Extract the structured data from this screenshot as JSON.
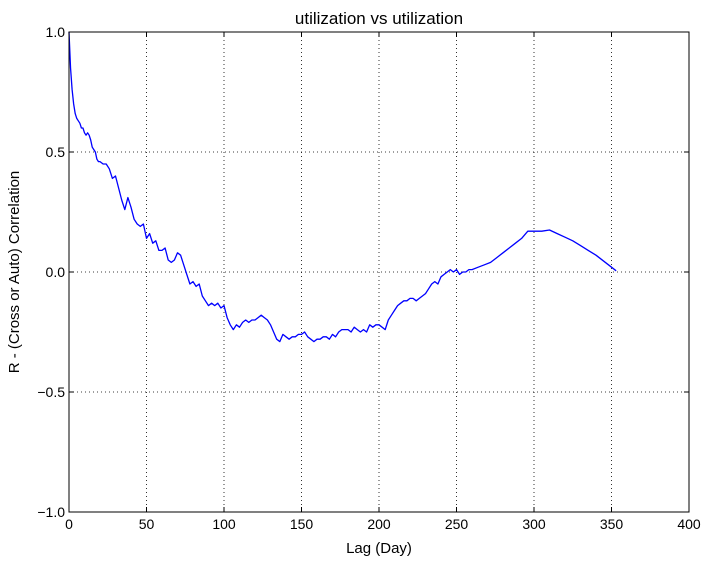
{
  "chart_data": {
    "type": "line",
    "title": "utilization vs utilization",
    "xlabel": "Lag (Day)",
    "ylabel": "R - (Cross or Auto) Correlation",
    "xlim": [
      0,
      400
    ],
    "ylim": [
      -1.0,
      1.0
    ],
    "xticks": [
      0,
      50,
      100,
      150,
      200,
      250,
      300,
      350,
      400
    ],
    "xtick_labels": [
      "0",
      "50",
      "100",
      "150",
      "200",
      "250",
      "300",
      "350",
      "400"
    ],
    "yticks": [
      -1.0,
      -0.5,
      0.0,
      0.5,
      1.0
    ],
    "ytick_labels": [
      "−1.0",
      "−0.5",
      "0.0",
      "0.5",
      "1.0"
    ],
    "grid": true,
    "grid_style": "dotted",
    "legend": "none",
    "line_color": "#0000ff",
    "series": [
      {
        "x": [
          0,
          1,
          2,
          3,
          4,
          5,
          6,
          7,
          8,
          9,
          10,
          11,
          12,
          13,
          14,
          15,
          16,
          17,
          18,
          19,
          20,
          22,
          24,
          26,
          28,
          30,
          32,
          34,
          36,
          38,
          40,
          42,
          44,
          46,
          48,
          50,
          52,
          54,
          56,
          58,
          60,
          62,
          64,
          66,
          68,
          70,
          72,
          74,
          76,
          78,
          80,
          82,
          84,
          86,
          88,
          90,
          92,
          94,
          96,
          98,
          100,
          102,
          104,
          106,
          108,
          110,
          112,
          114,
          116,
          118,
          120,
          122,
          124,
          126,
          128,
          130,
          132,
          134,
          136,
          138,
          140,
          142,
          144,
          146,
          148,
          150,
          152,
          154,
          156,
          158,
          160,
          162,
          164,
          166,
          168,
          170,
          172,
          174,
          176,
          178,
          180,
          182,
          184,
          186,
          188,
          190,
          192,
          194,
          196,
          198,
          200,
          202,
          204,
          206,
          208,
          210,
          212,
          214,
          216,
          218,
          220,
          222,
          224,
          226,
          228,
          230,
          232,
          234,
          236,
          238,
          240,
          242,
          244,
          246,
          248,
          250,
          252,
          254,
          256,
          258,
          260,
          264,
          268,
          272,
          276,
          280,
          284,
          288,
          292,
          296,
          300,
          305,
          310,
          315,
          320,
          325,
          330,
          335,
          340,
          345,
          350,
          353
        ],
        "y": [
          1.0,
          0.85,
          0.76,
          0.7,
          0.66,
          0.64,
          0.63,
          0.62,
          0.6,
          0.6,
          0.58,
          0.57,
          0.58,
          0.57,
          0.55,
          0.52,
          0.51,
          0.5,
          0.47,
          0.46,
          0.46,
          0.45,
          0.45,
          0.43,
          0.39,
          0.4,
          0.35,
          0.3,
          0.26,
          0.31,
          0.27,
          0.22,
          0.2,
          0.19,
          0.2,
          0.14,
          0.16,
          0.12,
          0.13,
          0.09,
          0.09,
          0.1,
          0.05,
          0.04,
          0.05,
          0.08,
          0.07,
          0.03,
          -0.01,
          -0.05,
          -0.04,
          -0.06,
          -0.05,
          -0.1,
          -0.12,
          -0.14,
          -0.13,
          -0.14,
          -0.13,
          -0.15,
          -0.14,
          -0.19,
          -0.22,
          -0.24,
          -0.22,
          -0.23,
          -0.21,
          -0.2,
          -0.21,
          -0.2,
          -0.2,
          -0.19,
          -0.18,
          -0.19,
          -0.2,
          -0.22,
          -0.25,
          -0.28,
          -0.29,
          -0.26,
          -0.27,
          -0.28,
          -0.27,
          -0.27,
          -0.26,
          -0.26,
          -0.25,
          -0.27,
          -0.28,
          -0.29,
          -0.28,
          -0.28,
          -0.27,
          -0.27,
          -0.28,
          -0.26,
          -0.27,
          -0.25,
          -0.24,
          -0.24,
          -0.24,
          -0.25,
          -0.23,
          -0.24,
          -0.25,
          -0.24,
          -0.25,
          -0.22,
          -0.23,
          -0.22,
          -0.22,
          -0.23,
          -0.24,
          -0.2,
          -0.18,
          -0.16,
          -0.14,
          -0.13,
          -0.12,
          -0.12,
          -0.11,
          -0.11,
          -0.12,
          -0.11,
          -0.1,
          -0.09,
          -0.07,
          -0.05,
          -0.04,
          -0.05,
          -0.02,
          -0.01,
          0.0,
          0.01,
          0.0,
          0.01,
          -0.01,
          0.0,
          0.0,
          0.01,
          0.01,
          0.02,
          0.03,
          0.04,
          0.06,
          0.08,
          0.1,
          0.12,
          0.14,
          0.17,
          0.17,
          0.17,
          0.175,
          0.16,
          0.145,
          0.13,
          0.11,
          0.09,
          0.07,
          0.045,
          0.02,
          0.005
        ]
      }
    ]
  }
}
